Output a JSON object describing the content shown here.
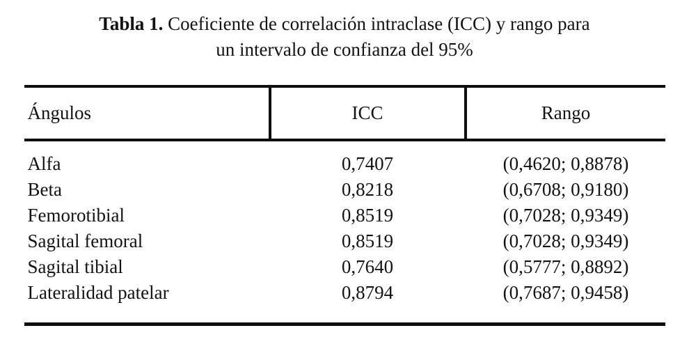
{
  "document": {
    "caption": {
      "label": "Tabla 1.",
      "line1": "Coeficiente de correlación intraclase (ICC) y rango para",
      "line2": "un intervalo de confianza del 95%"
    },
    "table": {
      "columns": [
        "Ángulos",
        "ICC",
        "Rango"
      ],
      "rows": [
        {
          "angulo": "Alfa",
          "icc": "0,7407",
          "rango": "(0,4620; 0,8878)"
        },
        {
          "angulo": "Beta",
          "icc": "0,8218",
          "rango": "(0,6708; 0,9180)"
        },
        {
          "angulo": "Femorotibial",
          "icc": "0,8519",
          "rango": "(0,7028; 0,9349)"
        },
        {
          "angulo": "Sagital femoral",
          "icc": "0,8519",
          "rango": "(0,7028; 0,9349)"
        },
        {
          "angulo": "Sagital tibial",
          "icc": "0,7640",
          "rango": "(0,5777; 0,8892)"
        },
        {
          "angulo": "Lateralidad patelar",
          "icc": "0,8794",
          "rango": "(0,7687; 0,9458)"
        }
      ]
    }
  }
}
